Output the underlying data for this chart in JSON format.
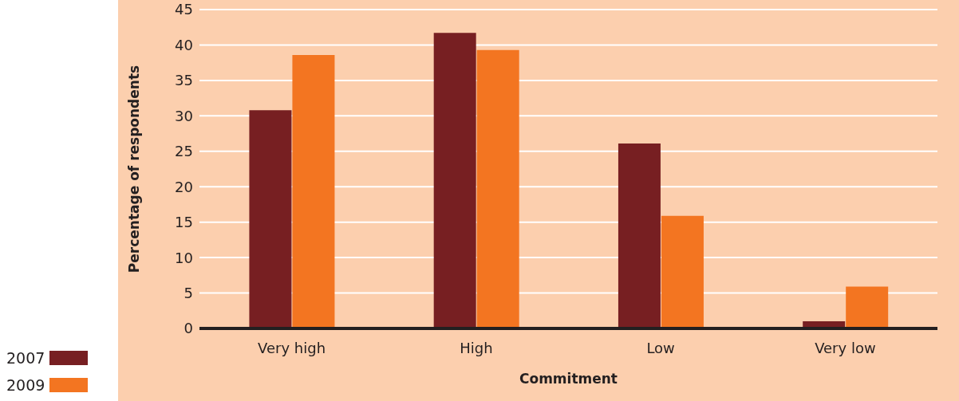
{
  "chart_data": {
    "type": "bar",
    "xlabel": "Commitment",
    "ylabel": "Percentage of respondents",
    "categories": [
      "Very high",
      "High",
      "Low",
      "Very low"
    ],
    "series": [
      {
        "name": "2007",
        "color": "#771f22",
        "values": [
          30.8,
          41.7,
          26.1,
          1.0
        ]
      },
      {
        "name": "2009",
        "color": "#f37521",
        "values": [
          38.6,
          39.3,
          15.9,
          5.9
        ]
      }
    ],
    "ylim": [
      0,
      45
    ],
    "yticks": [
      0,
      5,
      10,
      15,
      20,
      25,
      30,
      35,
      40,
      45
    ],
    "grid": "y",
    "legend": "bottom left"
  }
}
